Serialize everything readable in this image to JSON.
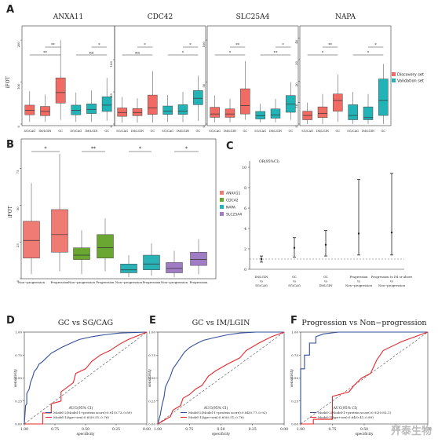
{
  "panel_letters": [
    "A",
    "B",
    "C",
    "D",
    "E",
    "F"
  ],
  "colors": {
    "discovery": "#ef6b64",
    "validation": "#22b3b6",
    "anxa11": "#f07a74",
    "cdc42": "#6aa632",
    "napa": "#29b3b7",
    "slc25a4": "#a07cc5",
    "roc_blue": "#2f4f9c",
    "roc_red": "#e8262b",
    "ref": "#555555"
  },
  "watermark": "开泰生物",
  "chart_data": [
    {
      "type": "box",
      "panel": "A",
      "ylabel": "iFOT",
      "legend": [
        "Discovery set",
        "Validation set"
      ],
      "legend_position": "right",
      "categories": [
        "SG/CAG",
        "IM/LGIN",
        "GC",
        "SG/CAG",
        "IM/LGIN",
        "GC"
      ],
      "set_of_category": [
        "Discovery set",
        "Discovery set",
        "Discovery set",
        "Validation set",
        "Validation set",
        "Validation set"
      ],
      "subplots": [
        {
          "title": "ANXA11",
          "ylim": [
            0,
            230
          ],
          "yticks": [
            0,
            100,
            200
          ],
          "boxes": [
            [
              5,
              22,
              33,
              45,
              78
            ],
            [
              5,
              20,
              30,
              42,
              70
            ],
            [
              10,
              50,
              75,
              110,
              200
            ],
            [
              5,
              22,
              33,
              45,
              75
            ],
            [
              5,
              25,
              35,
              48,
              80
            ],
            [
              8,
              30,
              45,
              65,
              110
            ]
          ],
          "comparisons": [
            {
              "from": 0,
              "to": 2,
              "label": "**",
              "tier": 2
            },
            {
              "from": 1,
              "to": 2,
              "label": "**",
              "tier": 3
            },
            {
              "from": 3,
              "to": 5,
              "label": "ns",
              "tier": 2
            },
            {
              "from": 4,
              "to": 5,
              "label": "*",
              "tier": 3
            }
          ]
        },
        {
          "title": "CDC42",
          "ylim": [
            0,
            150
          ],
          "yticks": [
            0,
            50,
            100
          ],
          "boxes": [
            [
              2,
              12,
              18,
              25,
              42
            ],
            [
              2,
              13,
              18,
              24,
              40
            ],
            [
              2,
              15,
              25,
              45,
              82
            ],
            [
              3,
              15,
              20,
              28,
              45
            ],
            [
              3,
              15,
              20,
              30,
              50
            ],
            [
              5,
              30,
              40,
              52,
              75
            ]
          ],
          "comparisons": [
            {
              "from": 0,
              "to": 2,
              "label": "ns",
              "tier": 2
            },
            {
              "from": 1,
              "to": 2,
              "label": "*",
              "tier": 3
            },
            {
              "from": 3,
              "to": 5,
              "label": "*",
              "tier": 2
            },
            {
              "from": 4,
              "to": 5,
              "label": "*",
              "tier": 3
            }
          ]
        },
        {
          "title": "SLC25A4",
          "ylim": [
            0,
            115
          ],
          "yticks": [
            0,
            50,
            100
          ],
          "boxes": [
            [
              2,
              8,
              12,
              20,
              34
            ],
            [
              2,
              8,
              12,
              18,
              30
            ],
            [
              5,
              12,
              22,
              42,
              75
            ],
            [
              2,
              6,
              10,
              15,
              24
            ],
            [
              2,
              7,
              11,
              18,
              30
            ],
            [
              5,
              14,
              24,
              34,
              50
            ]
          ],
          "comparisons": [
            {
              "from": 0,
              "to": 2,
              "label": "*",
              "tier": 2
            },
            {
              "from": 1,
              "to": 2,
              "label": "**",
              "tier": 3
            },
            {
              "from": 3,
              "to": 5,
              "label": "**",
              "tier": 2
            },
            {
              "from": 4,
              "to": 5,
              "label": "*",
              "tier": 3
            }
          ]
        },
        {
          "title": "NAPA",
          "ylim": [
            0,
            45
          ],
          "yticks": [
            0,
            10,
            20,
            30,
            40
          ],
          "boxes": [
            [
              0,
              2,
              4,
              6,
              10
            ],
            [
              0,
              3,
              5,
              8,
              14
            ],
            [
              1,
              6,
              11,
              14,
              23
            ],
            [
              0,
              2,
              4,
              9,
              15
            ],
            [
              0,
              2,
              3,
              8,
              14
            ],
            [
              0,
              4,
              11,
              21,
              28
            ]
          ],
          "comparisons": [
            {
              "from": 0,
              "to": 2,
              "label": "*",
              "tier": 2
            },
            {
              "from": 1,
              "to": 2,
              "label": "**",
              "tier": 3
            },
            {
              "from": 3,
              "to": 5,
              "label": "*",
              "tier": 2
            },
            {
              "from": 4,
              "to": 5,
              "label": "*",
              "tier": 3
            }
          ]
        }
      ]
    },
    {
      "type": "box",
      "panel": "B",
      "ylabel": "iFOT",
      "ylim": [
        0,
        95
      ],
      "yticks": [
        0,
        25,
        50,
        75
      ],
      "legend": [
        "ANXA11",
        "CDC42",
        "NAPA",
        "SLC25A4"
      ],
      "legend_position": "right",
      "categories": [
        "Non−progression",
        "Progression",
        "Non−progression",
        "Progression",
        "Non−progression",
        "Progression",
        "Non−progression",
        "Progression"
      ],
      "group_of_category": [
        "ANXA11",
        "ANXA11",
        "CDC42",
        "CDC42",
        "NAPA",
        "NAPA",
        "SLC25A4",
        "SLC25A4"
      ],
      "boxes": [
        [
          3,
          14,
          26,
          39,
          65
        ],
        [
          5,
          18,
          30,
          47,
          85
        ],
        [
          3,
          13,
          16,
          21,
          33
        ],
        [
          5,
          14,
          21,
          30,
          41
        ],
        [
          1,
          4,
          6,
          10,
          16
        ],
        [
          2,
          6,
          10,
          16,
          24
        ],
        [
          1,
          4,
          7,
          11,
          19
        ],
        [
          3,
          9,
          13,
          18,
          27
        ]
      ],
      "comparisons": [
        {
          "from": 0,
          "to": 1,
          "label": "*"
        },
        {
          "from": 2,
          "to": 3,
          "label": "**"
        },
        {
          "from": 4,
          "to": 5,
          "label": "*"
        },
        {
          "from": 6,
          "to": 7,
          "label": "*"
        }
      ]
    },
    {
      "type": "errorbar",
      "panel": "C",
      "ylabel": "OR(95%CI)",
      "ylim": [
        0,
        10
      ],
      "yticks": [
        0,
        2,
        4,
        6,
        8,
        10
      ],
      "reference_line": 1,
      "categories": [
        [
          "IM/LGIN",
          "vs",
          "SG/CAG"
        ],
        [
          "GC",
          "vs",
          "SG/CAG"
        ],
        [
          "GC",
          "vs",
          "IM/LGIN"
        ],
        [
          "Progression",
          "vs",
          "Non−progression"
        ],
        [
          "Progression to IM or above",
          "vs",
          "Non−progression"
        ]
      ],
      "estimate": [
        1.0,
        2.1,
        2.4,
        3.5,
        3.6
      ],
      "lower": [
        0.7,
        1.2,
        1.3,
        1.4,
        1.4
      ],
      "upper": [
        1.3,
        3.1,
        3.8,
        8.8,
        9.4
      ]
    },
    {
      "type": "roc",
      "panel": "D",
      "title": "GC vs SG/CAG",
      "xlabel": "specificity",
      "ylabel": "sensitivity",
      "xticks": [
        "1.00",
        "0.75",
        "0.50",
        "0.25",
        "0.00"
      ],
      "yticks": [
        "0.00",
        "0.25",
        "0.50",
        "0.75",
        "1.00"
      ],
      "legend_title": "AUC(95% CI)",
      "series": [
        {
          "name": "Model-2(Model-1+protein score):0.81(0.73–0.89)",
          "color": "#2f4f9c",
          "x": [
            0,
            0.01,
            0.02,
            0.02,
            0.04,
            0.05,
            0.07,
            0.08,
            0.1,
            0.12,
            0.15,
            0.18,
            0.22,
            0.26,
            0.3,
            0.38,
            0.45,
            0.55,
            0.65,
            0.78,
            1
          ],
          "y": [
            0,
            0.2,
            0.22,
            0.33,
            0.38,
            0.45,
            0.52,
            0.57,
            0.6,
            0.65,
            0.68,
            0.72,
            0.77,
            0.8,
            0.83,
            0.88,
            0.92,
            0.95,
            0.97,
            0.99,
            1
          ]
        },
        {
          "name": "Model-1(Age+sex):0.63(0.51–0.76)",
          "color": "#e8262b",
          "x": [
            0,
            0.15,
            0.15,
            0.22,
            0.22,
            0.3,
            0.3,
            0.4,
            0.42,
            0.5,
            0.55,
            0.62,
            0.7,
            0.78,
            0.85,
            1
          ],
          "y": [
            0,
            0,
            0.12,
            0.12,
            0.22,
            0.25,
            0.35,
            0.45,
            0.55,
            0.6,
            0.68,
            0.75,
            0.8,
            0.87,
            0.92,
            1
          ]
        }
      ]
    },
    {
      "type": "roc",
      "panel": "E",
      "title": "GC vs IM/LGIN",
      "xlabel": "specificity",
      "ylabel": "sensitivity",
      "xticks": [
        "1.00",
        "0.75",
        "0.50",
        "0.25",
        "0.00"
      ],
      "yticks": [
        "0.00",
        "0.25",
        "0.50",
        "0.75",
        "1.00"
      ],
      "legend_title": "AUC(95% CI)",
      "series": [
        {
          "name": "Model-2(Model-1+protein score):0.84(0.77–0.92)",
          "color": "#2f4f9c",
          "x": [
            0,
            0.02,
            0.03,
            0.05,
            0.06,
            0.08,
            0.1,
            0.12,
            0.15,
            0.18,
            0.21,
            0.25,
            0.3,
            0.36,
            0.45,
            0.55,
            0.65,
            0.78,
            1
          ],
          "y": [
            0,
            0.1,
            0.18,
            0.3,
            0.4,
            0.46,
            0.52,
            0.6,
            0.66,
            0.72,
            0.78,
            0.83,
            0.87,
            0.91,
            0.94,
            0.97,
            0.99,
            1,
            1
          ]
        },
        {
          "name": "Model-1(Age+sex):0.63(0.51–0.76)",
          "color": "#e8262b",
          "x": [
            0,
            0.1,
            0.12,
            0.18,
            0.2,
            0.25,
            0.3,
            0.35,
            0.4,
            0.46,
            0.55,
            0.65,
            0.7,
            0.8,
            0.9,
            1
          ],
          "y": [
            0,
            0.08,
            0.15,
            0.2,
            0.28,
            0.32,
            0.38,
            0.42,
            0.52,
            0.58,
            0.65,
            0.72,
            0.8,
            0.88,
            0.95,
            1
          ]
        }
      ]
    },
    {
      "type": "roc",
      "panel": "F",
      "title": "Progression vs Non−progression",
      "xlabel": "specificity",
      "ylabel": "sensitivity",
      "xticks": [
        "1.00",
        "0.75",
        "0.50",
        "0.25",
        "0.00"
      ],
      "yticks": [
        "0.00",
        "0.25",
        "0.50",
        "0.75",
        "1.00"
      ],
      "legend_title": "AUC(95% CI)",
      "series": [
        {
          "name": "Model-2(Model-1+protein score):0.92(0.83–1)",
          "color": "#2f4f9c",
          "x": [
            0,
            0,
            0.03,
            0.03,
            0.07,
            0.07,
            0.12,
            0.12,
            0.18,
            0.3,
            0.45,
            0.6,
            1
          ],
          "y": [
            0,
            0.6,
            0.6,
            0.75,
            0.75,
            0.88,
            0.88,
            0.95,
            0.98,
            1,
            1,
            1,
            1
          ]
        },
        {
          "name": "Model-1(Age+sex):0.64(0.41–0.89)",
          "color": "#e8262b",
          "x": [
            0,
            0.05,
            0.1,
            0.1,
            0.25,
            0.25,
            0.38,
            0.42,
            0.48,
            0.55,
            0.6,
            0.65,
            0.8,
            1
          ],
          "y": [
            0,
            0,
            0,
            0.05,
            0.05,
            0.3,
            0.35,
            0.42,
            0.5,
            0.55,
            0.7,
            0.8,
            0.9,
            1
          ]
        }
      ]
    }
  ]
}
